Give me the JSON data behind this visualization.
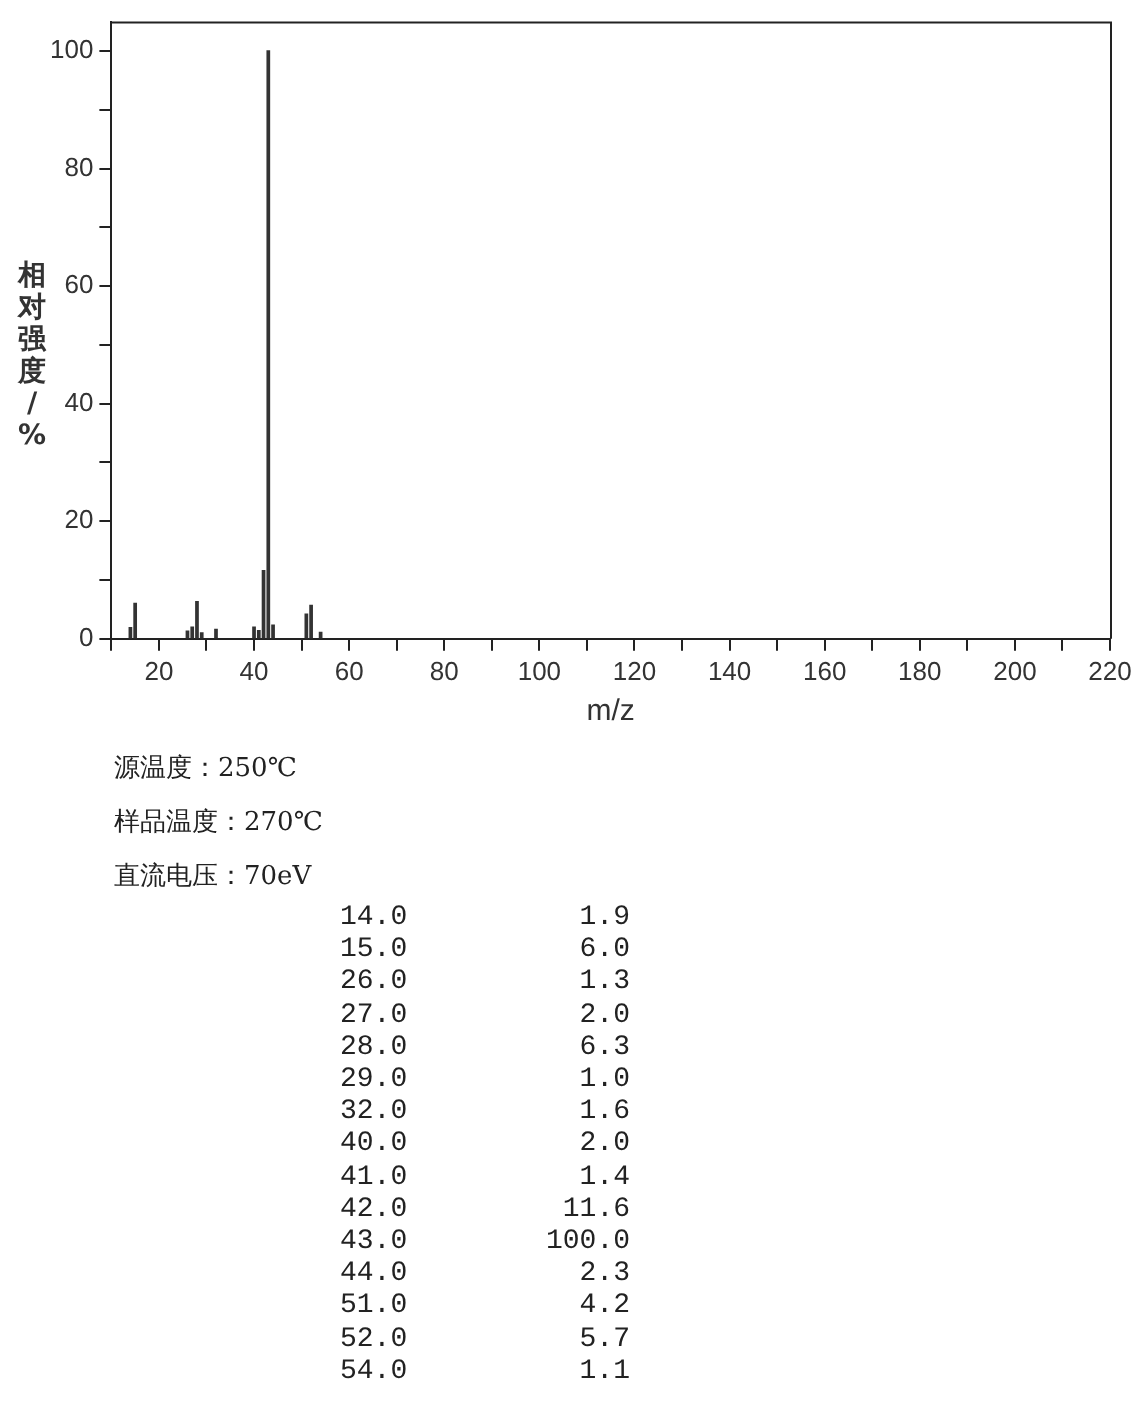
{
  "chart_data": {
    "type": "bar",
    "ylabel": "相对强度/%",
    "xlabel": "m/z",
    "color": "#333333",
    "x": [
      14,
      15,
      26,
      27,
      28,
      29,
      32,
      40,
      41,
      42,
      43,
      44,
      51,
      52,
      54
    ],
    "values": [
      1.9,
      6.0,
      1.3,
      2.0,
      6.3,
      1.0,
      1.6,
      2.0,
      1.4,
      11.6,
      100.0,
      2.3,
      4.2,
      5.7,
      1.1
    ],
    "xlim": [
      10,
      220
    ],
    "xticks": [
      {
        "value": 10,
        "label": null
      },
      20,
      {
        "value": 30,
        "label": null
      },
      40,
      {
        "value": 50,
        "label": null
      },
      60,
      {
        "value": 70,
        "label": null
      },
      80,
      {
        "value": 90,
        "label": null
      },
      100,
      {
        "value": 110,
        "label": null
      },
      120,
      {
        "value": 130,
        "label": null
      },
      140,
      {
        "value": 150,
        "label": null
      },
      160,
      {
        "value": 170,
        "label": null
      },
      180,
      {
        "value": 190,
        "label": null
      },
      200,
      {
        "value": 210,
        "label": null
      },
      220
    ],
    "ylim": [
      0,
      105
    ],
    "yticks": [
      0,
      {
        "value": 10,
        "label": null
      },
      20,
      {
        "value": 30,
        "label": null
      },
      40,
      {
        "value": 50,
        "label": null
      },
      60,
      {
        "value": 70,
        "label": null
      },
      80,
      {
        "value": 90,
        "label": null
      },
      100
    ],
    "grid": false,
    "legend": false,
    "annotations": [
      "源温度：250℃",
      "样品温度：270℃",
      "直流电压：70eV",
      "14.0",
      "1.9",
      "15.0",
      "6.0",
      "26.0",
      "1.3",
      "27.0",
      "2.0",
      "28.0",
      "6.3",
      "29.0",
      "1.0",
      "32.0",
      "1.6",
      "40.0",
      "2.0",
      "41.0",
      "1.4",
      "42.0",
      "11.6",
      "43.0",
      "100.0",
      "44.0",
      "2.3",
      "51.0",
      "4.2",
      "52.0",
      "5.7",
      "54.0",
      "1.1"
    ]
  }
}
